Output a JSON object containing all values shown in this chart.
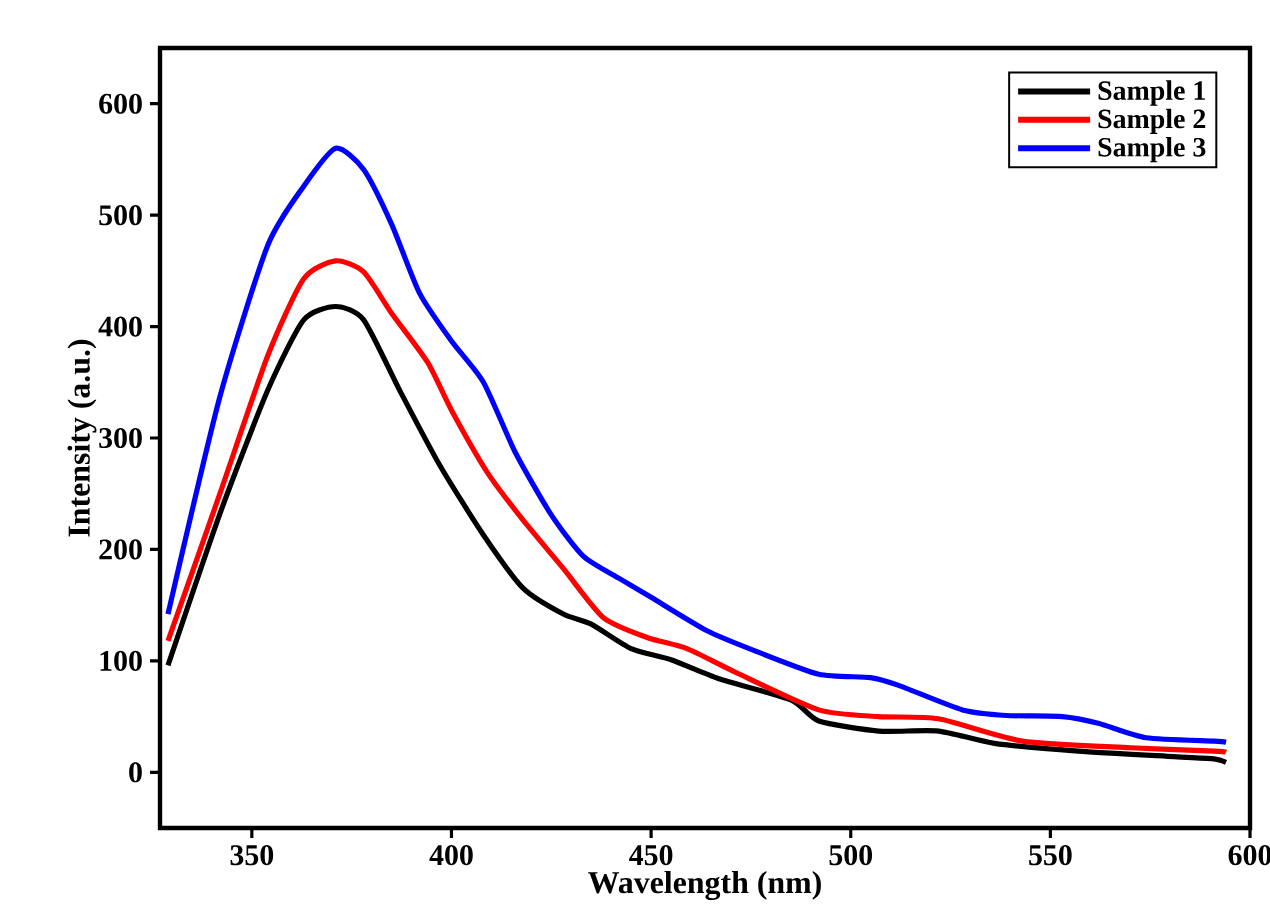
{
  "chart_data": {
    "type": "line",
    "xlabel": "Wavelength (nm)",
    "ylabel": "Intensity (a.u.)",
    "xlim": [
      327,
      600
    ],
    "ylim": [
      -50,
      650
    ],
    "xticks": [
      350,
      400,
      450,
      500,
      550,
      600
    ],
    "yticks": [
      0,
      100,
      200,
      300,
      400,
      500,
      600
    ],
    "grid": false,
    "legend": "top right",
    "marker": "none",
    "line_style": "solid",
    "series": [
      {
        "name": "Sample 1",
        "color": "#000000",
        "x": [
          329,
          342,
          354,
          363,
          371,
          378,
          387,
          397,
          408,
          418,
          428,
          435,
          445,
          455,
          467,
          485,
          492,
          507,
          522,
          536,
          557,
          581,
          591,
          594
        ],
        "values": [
          96,
          232,
          343,
          406,
          418,
          406,
          343,
          276,
          213,
          165,
          142,
          133,
          111,
          101,
          84,
          65,
          46,
          37,
          37,
          26,
          19,
          14,
          12,
          9
        ]
      },
      {
        "name": "Sample 2",
        "color": "#ff0000",
        "x": [
          329,
          342,
          354,
          363,
          371,
          378,
          385,
          394,
          400,
          409,
          418,
          428,
          438,
          449,
          459,
          471,
          492,
          507,
          522,
          543,
          570,
          591,
          594
        ],
        "values": [
          118,
          250,
          374,
          443,
          459,
          449,
          412,
          368,
          325,
          269,
          226,
          183,
          139,
          121,
          111,
          90,
          56,
          50,
          48,
          28,
          22,
          19,
          18
        ]
      },
      {
        "name": "Sample 3",
        "color": "#0000ff",
        "x": [
          329,
          342,
          354,
          363,
          371,
          378,
          385,
          392,
          400,
          408,
          416,
          425,
          433,
          442,
          450,
          464,
          476,
          492,
          505,
          512,
          528,
          539,
          553,
          562,
          574,
          591,
          594
        ],
        "values": [
          142,
          337,
          473,
          526,
          560,
          541,
          492,
          430,
          387,
          350,
          287,
          231,
          194,
          174,
          157,
          127,
          109,
          88,
          85,
          78,
          56,
          51,
          50,
          44,
          31,
          28,
          27
        ]
      }
    ]
  }
}
